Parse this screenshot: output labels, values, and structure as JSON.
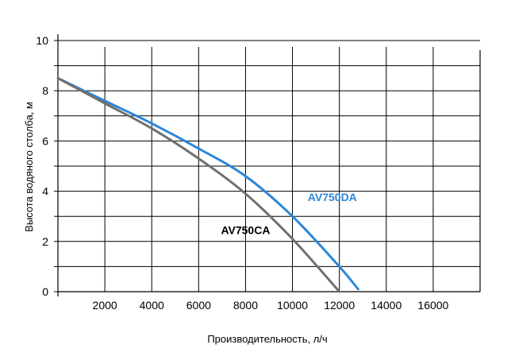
{
  "chart_data": {
    "type": "line",
    "xlabel": "Производительность, л/ч",
    "ylabel": "Высота водяного столба, м",
    "xlim": [
      0,
      18000
    ],
    "ylim": [
      0,
      10
    ],
    "x_ticks": [
      2000,
      4000,
      6000,
      8000,
      10000,
      12000,
      14000,
      16000
    ],
    "y_ticks": [
      0,
      2,
      4,
      6,
      8,
      10
    ],
    "grid": true,
    "series": [
      {
        "name": "AV750DA",
        "color": "#2b87d8",
        "x": [
          0,
          2000,
          4000,
          6000,
          8000,
          10000,
          12000,
          12800
        ],
        "y": [
          8.5,
          7.6,
          6.7,
          5.7,
          4.6,
          3.0,
          1.0,
          0.1
        ]
      },
      {
        "name": "AV750CA",
        "color": "#707070",
        "x": [
          0,
          2000,
          4000,
          6000,
          8000,
          10000,
          12000
        ],
        "y": [
          8.5,
          7.5,
          6.5,
          5.3,
          3.9,
          2.1,
          0.0
        ]
      }
    ],
    "series_label_positions": {
      "AV750DA": {
        "x": 11700,
        "y": 3.6
      },
      "AV750CA": {
        "x": 8000,
        "y": 2.3
      }
    }
  }
}
